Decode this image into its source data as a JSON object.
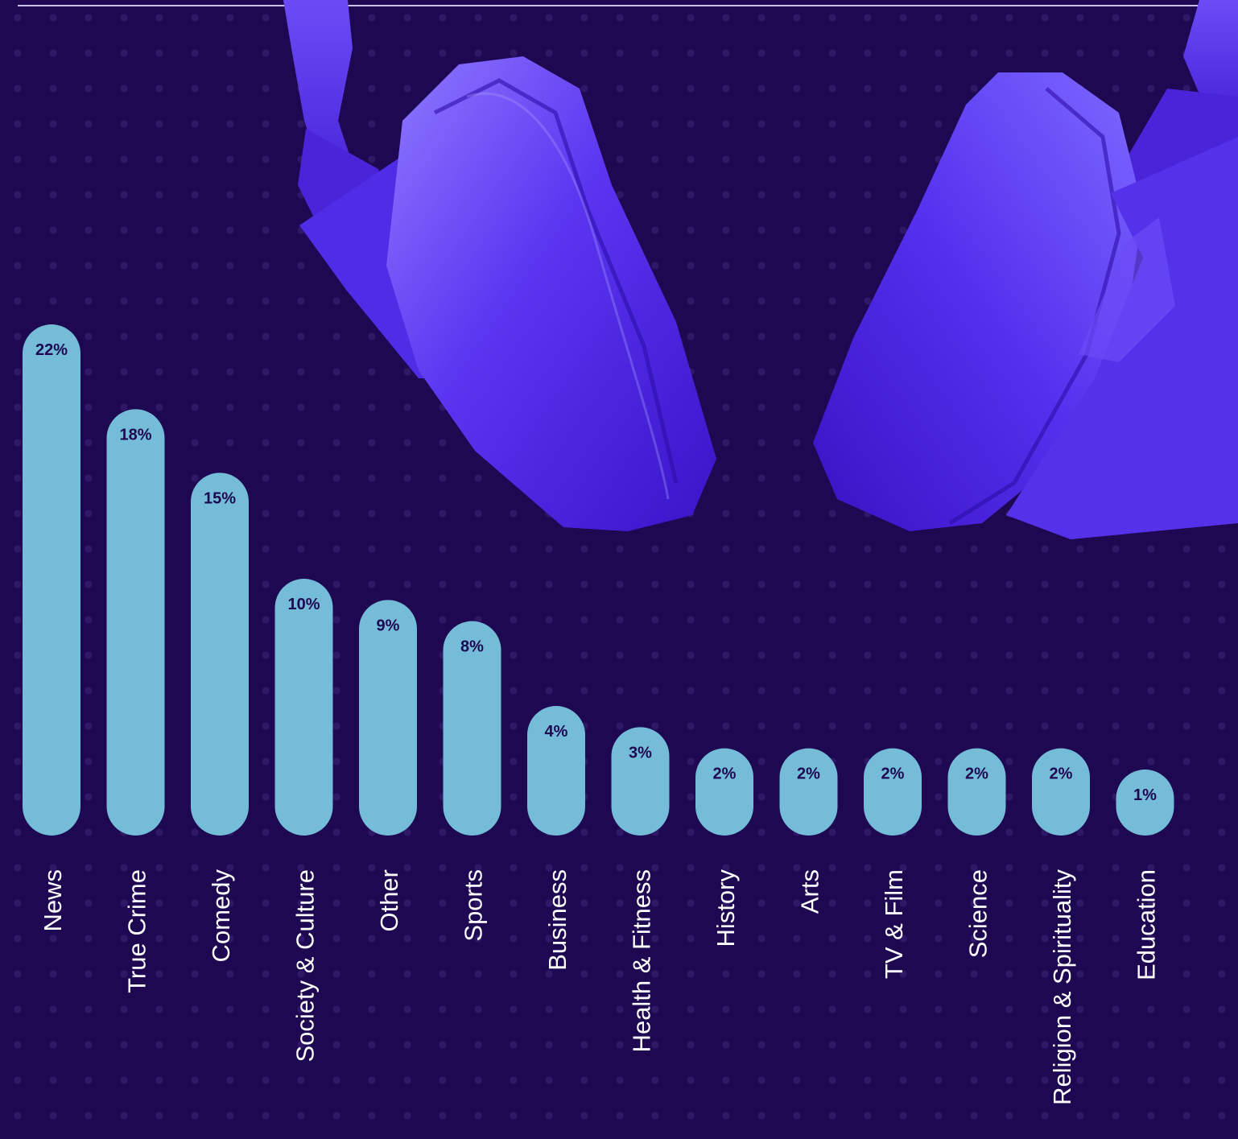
{
  "colors": {
    "background": "#1e0852",
    "bar": "#74bcd8",
    "value_label": "#1e0852",
    "category_label": "#ffffff",
    "headphones": "#5b3bf2"
  },
  "illustration": {
    "name": "headphones"
  },
  "chart_data": {
    "type": "bar",
    "categories": [
      "News",
      "True Crime",
      "Comedy",
      "Society & Culture",
      "Other",
      "Sports",
      "Business",
      "Health & Fitness",
      "History",
      "Arts",
      "TV & Film",
      "Science",
      "Religion & Spirituality",
      "Education"
    ],
    "values": [
      22,
      18,
      15,
      10,
      9,
      8,
      4,
      3,
      2,
      2,
      2,
      2,
      2,
      1
    ],
    "value_labels": [
      "22%",
      "18%",
      "15%",
      "10%",
      "9%",
      "8%",
      "4%",
      "3%",
      "2%",
      "2%",
      "2%",
      "2%",
      "2%",
      "1%"
    ],
    "title": "",
    "xlabel": "",
    "ylabel": "",
    "grid": false,
    "legend": "none"
  }
}
